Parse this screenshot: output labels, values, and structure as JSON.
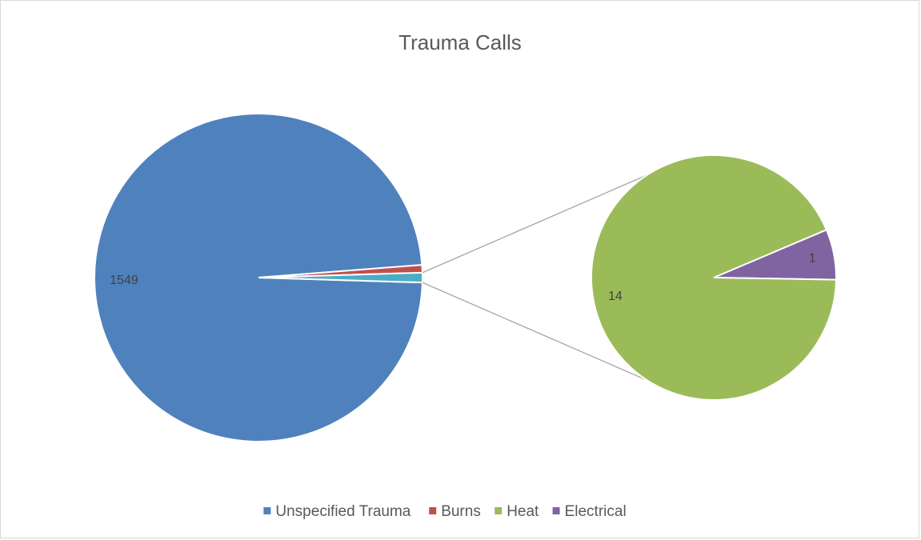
{
  "chart_data": {
    "type": "pie-of-pie",
    "title": "Trauma Calls",
    "categories": [
      "Unspecified Trauma",
      "Burns",
      "Heat",
      "Electrical"
    ],
    "values": [
      1549,
      12,
      14,
      1
    ],
    "colors": [
      "#4f81bd",
      "#c0504d",
      "#9bbb59",
      "#8064a2"
    ],
    "other_color": "#4bacc6",
    "split": 2,
    "data_labels": [
      true,
      false,
      true,
      true
    ],
    "legend": "bottom"
  }
}
